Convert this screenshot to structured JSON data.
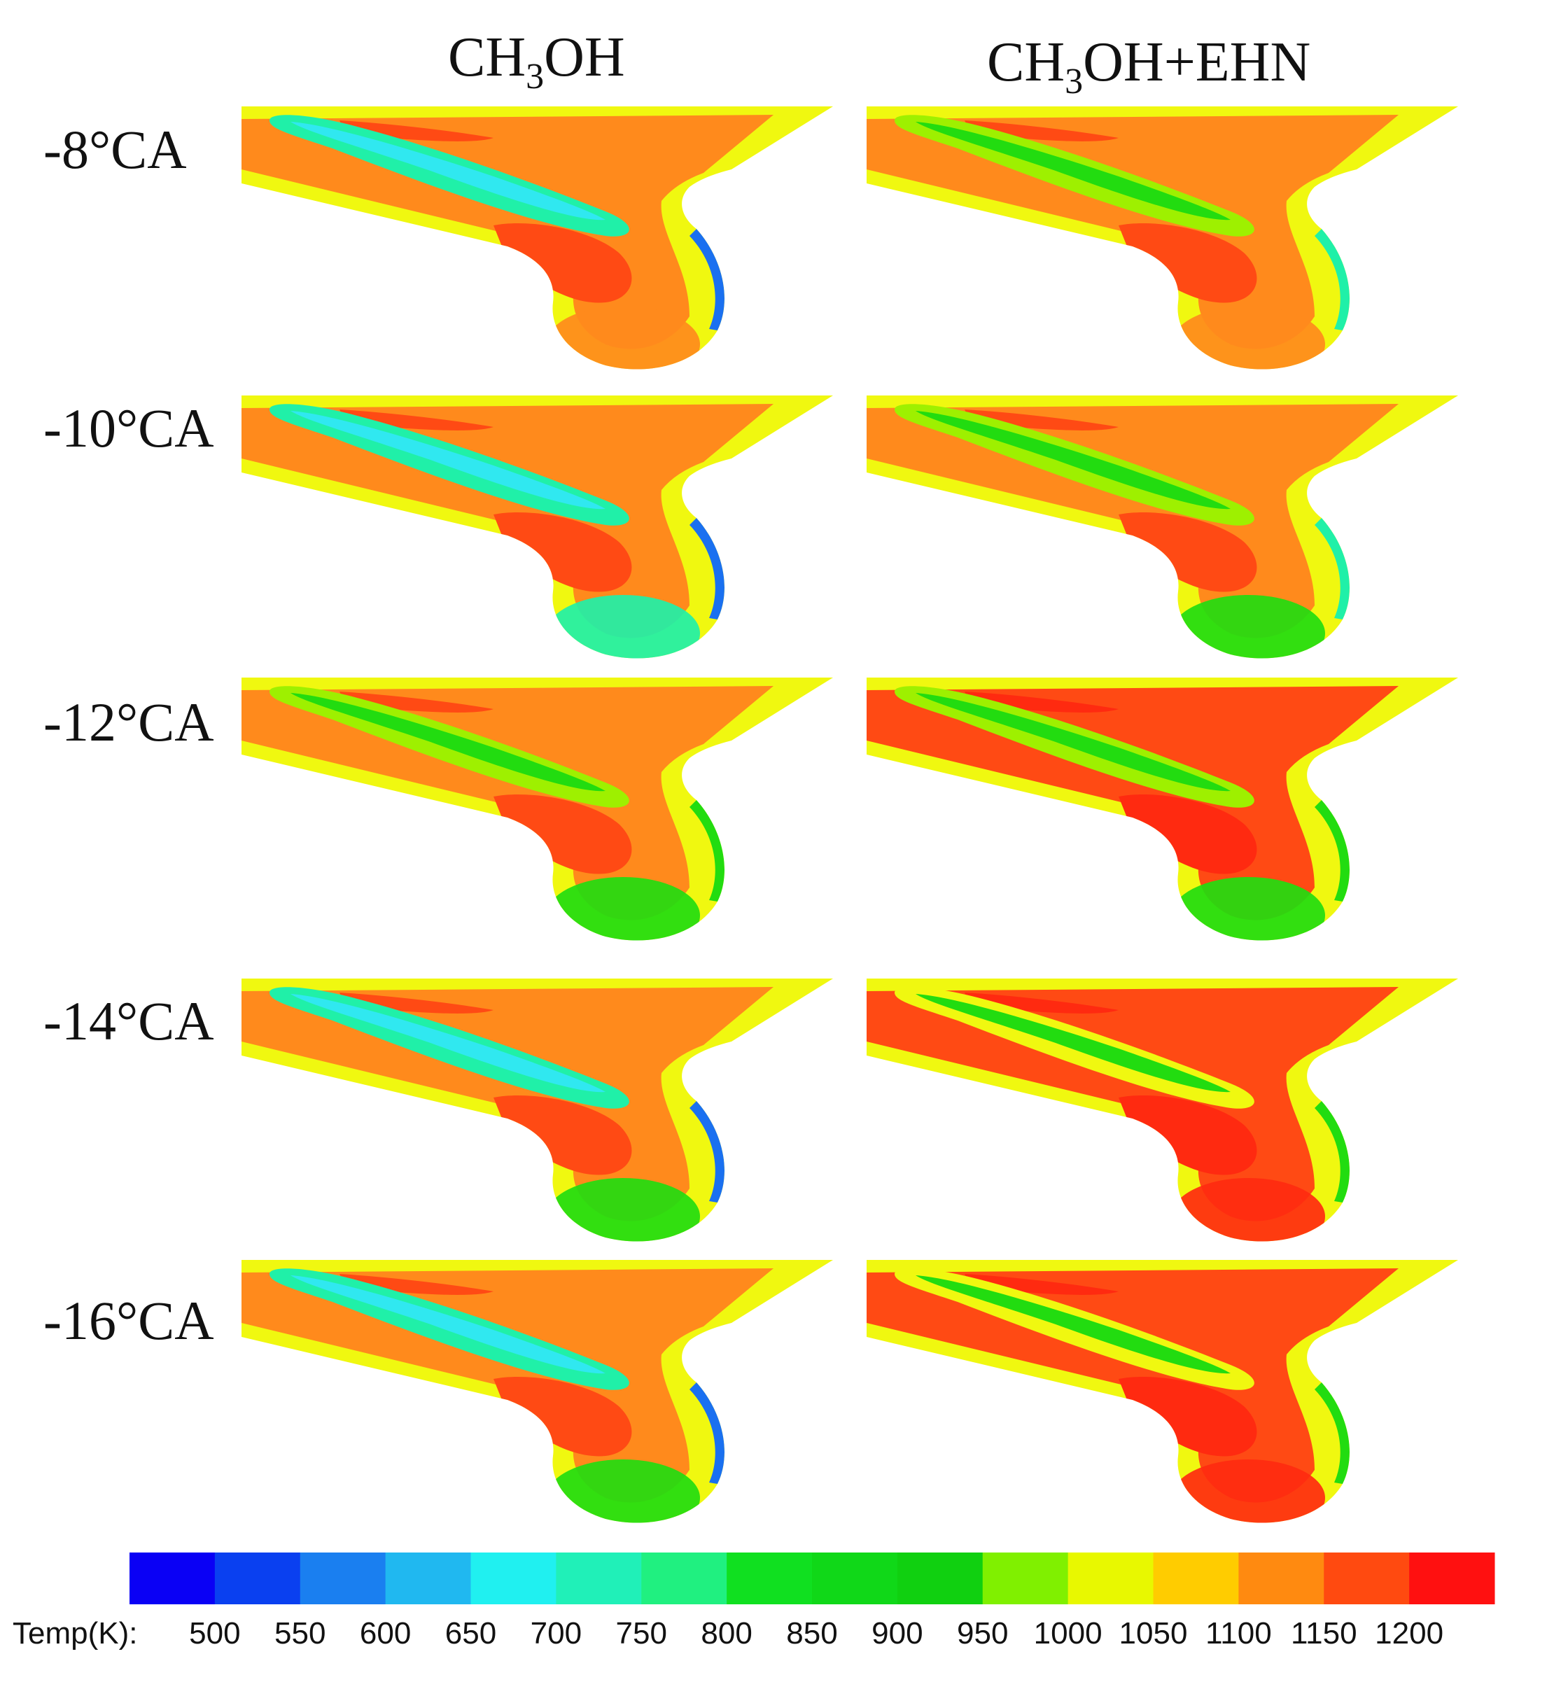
{
  "columns": [
    {
      "title_main": "CH",
      "title_sub": "3",
      "title_rest": "OH"
    },
    {
      "title_main": "CH",
      "title_sub": "3",
      "title_rest": "OH+EHN"
    }
  ],
  "rows": [
    "-8°CA",
    "-10°CA",
    "-12°CA",
    "-14°CA",
    "-16°CA"
  ],
  "legend": {
    "title": "Temp(K):",
    "ticks": [
      "500",
      "550",
      "600",
      "650",
      "700",
      "750",
      "800",
      "850",
      "900",
      "950",
      "1000",
      "1050",
      "1100",
      "1150",
      "1200"
    ],
    "colors": [
      "#0a00f5",
      "#0a40f0",
      "#1a7ff0",
      "#20b8f0",
      "#20f0f0",
      "#20f0b8",
      "#20f080",
      "#10e020",
      "#10d818",
      "#10d010",
      "#80f000",
      "#e8f800",
      "#ffcc00",
      "#ff8a10",
      "#ff4a10",
      "#ff1010"
    ]
  },
  "palette": {
    "red": "#ff2a10",
    "red_orange": "#ff4a14",
    "orange": "#ff8a1c",
    "yellow_orange": "#ffc800",
    "yellow": "#f0f810",
    "yellow_green": "#9ef000",
    "green": "#22dc10",
    "teal": "#20f0a8",
    "cyan": "#30e8f0",
    "blue": "#1a70f0"
  }
}
